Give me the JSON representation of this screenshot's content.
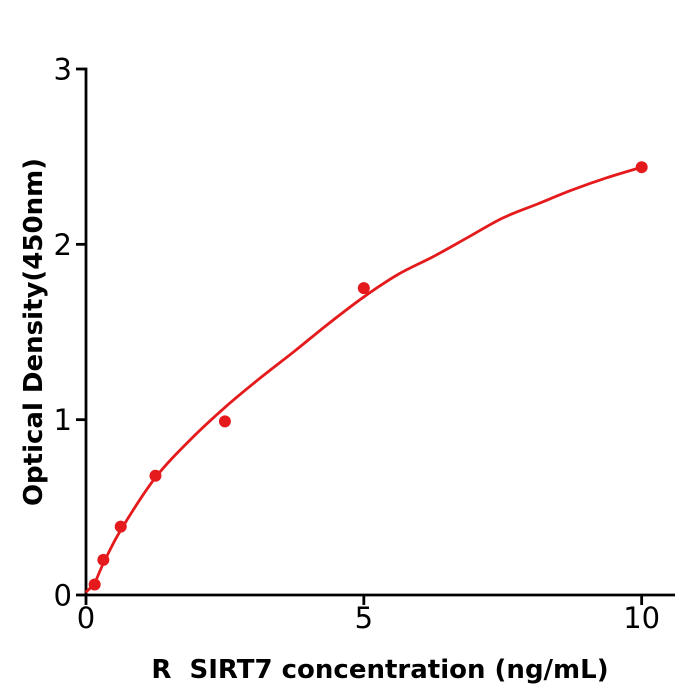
{
  "figure": {
    "background": "#ffffff",
    "axis_color": "#000000"
  },
  "chart_data": {
    "type": "scatter",
    "title": "",
    "xlabel": "R  SIRT7 concentration (ng/mL)",
    "ylabel": "Optical Density(450nm)",
    "x_ticks": [
      0,
      5,
      10
    ],
    "y_ticks": [
      0,
      1,
      2,
      3
    ],
    "xlim": [
      0,
      10.6
    ],
    "ylim": [
      0,
      3
    ],
    "grid": false,
    "legend": "none",
    "series": [
      {
        "marker": "circle",
        "marker_size": 6,
        "color": "#e41a1c",
        "x": [
          0.156,
          0.3125,
          0.625,
          1.25,
          2.5,
          5,
          10
        ],
        "y": [
          0.06,
          0.2,
          0.39,
          0.68,
          0.99,
          1.75,
          2.44
        ]
      }
    ],
    "fit_curve": {
      "color": "#e41a1c",
      "line_width": 2.8,
      "x": [
        0.01,
        0.156,
        0.3125,
        0.625,
        1.25,
        1.875,
        2.5,
        3.125,
        3.75,
        4.375,
        5,
        5.625,
        6.25,
        6.875,
        7.5,
        8.125,
        8.75,
        9.375,
        10
      ],
      "y": [
        0.02,
        0.07,
        0.18,
        0.37,
        0.67,
        0.885,
        1.07,
        1.235,
        1.39,
        1.55,
        1.7,
        1.83,
        1.93,
        2.04,
        2.15,
        2.23,
        2.31,
        2.38,
        2.44
      ]
    }
  }
}
